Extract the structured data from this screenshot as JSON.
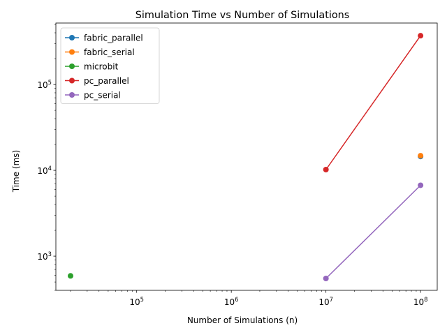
{
  "chart_data": {
    "type": "line",
    "title": "Simulation Time vs Number of Simulations",
    "xlabel": "Number of Simulations (n)",
    "ylabel": "Time (ms)",
    "xscale": "log",
    "yscale": "log",
    "xlim": [
      14000,
      150000000
    ],
    "ylim": [
      400,
      520000
    ],
    "grid": false,
    "legend_position": "top-left",
    "x_ticks": [
      {
        "value": 100000,
        "base": "10",
        "exp": "5"
      },
      {
        "value": 1000000,
        "base": "10",
        "exp": "6"
      },
      {
        "value": 10000000,
        "base": "10",
        "exp": "7"
      },
      {
        "value": 100000000,
        "base": "10",
        "exp": "8"
      }
    ],
    "y_ticks": [
      {
        "value": 1000,
        "base": "10",
        "exp": "3"
      },
      {
        "value": 10000,
        "base": "10",
        "exp": "4"
      },
      {
        "value": 100000,
        "base": "10",
        "exp": "5"
      }
    ],
    "series": [
      {
        "name": "fabric_parallel",
        "color": "#1f77b4",
        "points": [
          {
            "x": 100000000,
            "y": 14500
          }
        ]
      },
      {
        "name": "fabric_serial",
        "color": "#ff7f0e",
        "points": [
          {
            "x": 100000000,
            "y": 14800
          }
        ]
      },
      {
        "name": "microbit",
        "color": "#2ca02c",
        "points": [
          {
            "x": 20000,
            "y": 590
          }
        ]
      },
      {
        "name": "pc_parallel",
        "color": "#d62728",
        "points": [
          {
            "x": 10000000,
            "y": 10200
          },
          {
            "x": 100000000,
            "y": 370000
          }
        ]
      },
      {
        "name": "pc_serial",
        "color": "#9467bd",
        "points": [
          {
            "x": 10000000,
            "y": 550
          },
          {
            "x": 100000000,
            "y": 6700
          }
        ]
      }
    ]
  }
}
